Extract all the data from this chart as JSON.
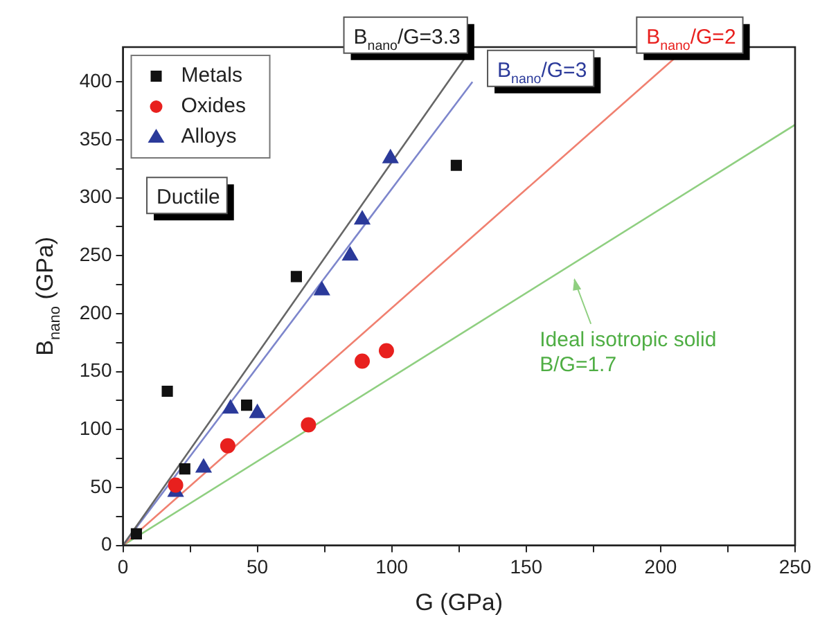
{
  "chart_data": {
    "type": "scatter",
    "xlabel": "G (GPa)",
    "ylabel": "B$_{nano}$ (GPa)",
    "xlim": [
      0,
      250
    ],
    "ylim": [
      0,
      430
    ],
    "xticks": [
      0,
      {
        "value": 25,
        "label": null
      },
      50,
      {
        "value": 75,
        "label": null
      },
      100,
      {
        "value": 125,
        "label": null
      },
      150,
      {
        "value": 175,
        "label": null
      },
      200,
      {
        "value": 225,
        "label": null
      },
      250
    ],
    "yticks": [
      0,
      {
        "value": 25,
        "label": null
      },
      50,
      {
        "value": 75,
        "label": null
      },
      100,
      {
        "value": 125,
        "label": null
      },
      150,
      {
        "value": 175,
        "label": null
      },
      200,
      {
        "value": 225,
        "label": null
      },
      250,
      {
        "value": 275,
        "label": null
      },
      300,
      {
        "value": 325,
        "label": null
      },
      350,
      {
        "value": 375,
        "label": null
      },
      400
    ],
    "grid": false,
    "legend": "top left",
    "series": [
      {
        "name": "Metals",
        "color": "#111111",
        "marker": "square",
        "x": [
          5,
          16.5,
          23,
          46,
          64.5,
          124
        ],
        "values": [
          10,
          133,
          66,
          121,
          232,
          328
        ]
      },
      {
        "name": "Oxides",
        "color": "#e8201e",
        "marker": "circle",
        "x": [
          19.6,
          39,
          69,
          89,
          98
        ],
        "values": [
          52,
          86,
          104,
          159,
          168
        ]
      },
      {
        "name": "Alloys",
        "color": "#2b3a9a",
        "marker": "triangle",
        "x": [
          19.6,
          30,
          40,
          50,
          74,
          84.5,
          89,
          99.5
        ],
        "values": [
          46,
          67,
          118,
          114,
          220,
          250,
          281,
          334
        ]
      },
      {
        "type": "line",
        "color": "#666666",
        "marker": "none",
        "x": [
          0,
          127
        ],
        "values": [
          0,
          420
        ]
      },
      {
        "type": "line",
        "color": "#7d86cc",
        "marker": "none",
        "x": [
          0,
          130
        ],
        "values": [
          0,
          400
        ]
      },
      {
        "type": "line",
        "color": "#f08070",
        "marker": "none",
        "x": [
          0,
          205
        ],
        "values": [
          0,
          420
        ]
      },
      {
        "type": "line",
        "color": "#8fcf80",
        "marker": "none",
        "x": [
          0,
          250
        ],
        "values": [
          0,
          363
        ]
      }
    ],
    "annotations": [
      {
        "text": "B$_{nano}$/G=3.3",
        "x": 127,
        "y": 420
      },
      {
        "text": "B$_{nano}$/G=3",
        "x": 131,
        "y": 402
      },
      {
        "text": "B$_{nano}$/G=2",
        "x": 205,
        "y": 420
      },
      "Ideal isotropic solid\nB/G=1.7",
      "Ductile"
    ]
  }
}
